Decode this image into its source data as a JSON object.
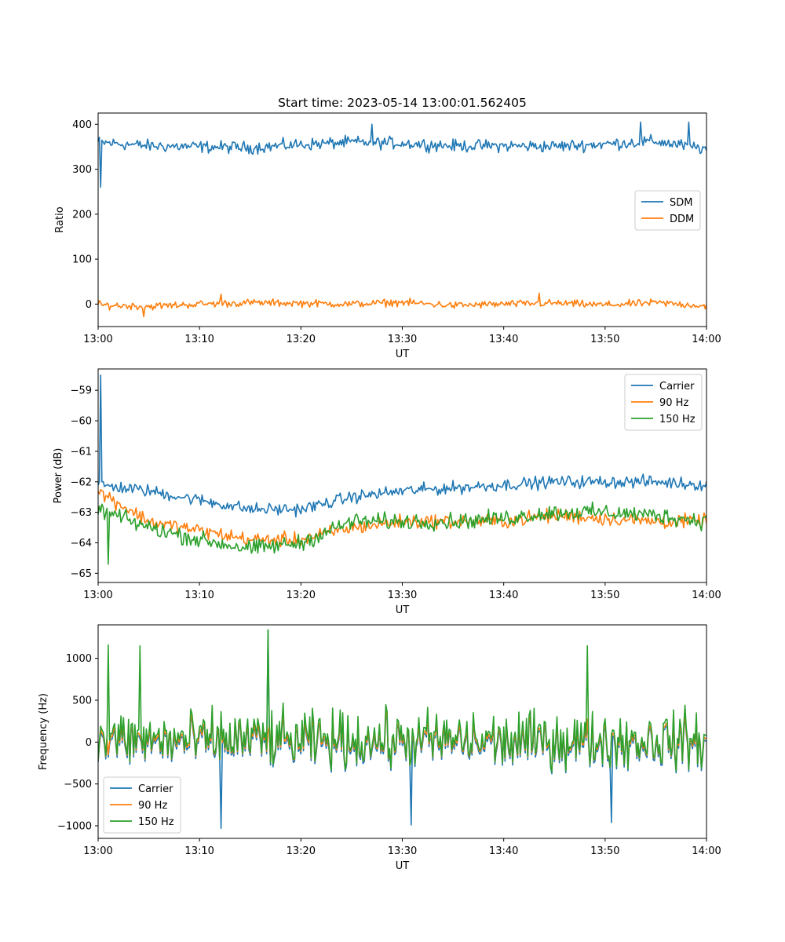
{
  "chart_data": [
    {
      "type": "line",
      "title": "Start time: 2023-05-14 13:00:01.562405",
      "xlabel": "UT",
      "ylabel": "Ratio",
      "xlim": [
        "13:00",
        "14:00"
      ],
      "xticks": [
        "13:00",
        "13:10",
        "13:20",
        "13:30",
        "13:40",
        "13:50",
        "14:00"
      ],
      "ylim": [
        -50,
        425
      ],
      "yticks": [
        0,
        100,
        200,
        300,
        400
      ],
      "grid": false,
      "legend_position": "center-right",
      "x_times": [
        "13:00:00",
        "13:05:00",
        "13:10:00",
        "13:15:00",
        "13:20:00",
        "13:25:00",
        "13:30:00",
        "13:35:00",
        "13:40:00",
        "13:45:00",
        "13:50:00",
        "13:55:00",
        "14:00:00"
      ],
      "series": [
        {
          "name": "SDM",
          "color": "#1f77b4",
          "mean": 355,
          "amplitude": 20,
          "spikes": [
            [
              "13:00:14",
              260
            ],
            [
              "13:27:00",
              400
            ],
            [
              "13:53:30",
              405
            ],
            [
              "13:58:15",
              405
            ]
          ],
          "values": [
            360,
            352,
            350,
            348,
            355,
            360,
            358,
            352,
            352,
            351,
            356,
            362,
            345
          ]
        },
        {
          "name": "DDM",
          "color": "#ff7f0e",
          "mean": 0,
          "amplitude": 12,
          "spikes": [
            [
              "13:04:30",
              -28
            ],
            [
              "13:12:10",
              22
            ],
            [
              "13:43:30",
              24
            ]
          ],
          "values": [
            -2,
            -5,
            0,
            3,
            2,
            0,
            4,
            -3,
            0,
            2,
            -2,
            3,
            -4
          ]
        }
      ]
    },
    {
      "type": "line",
      "title": "",
      "xlabel": "UT",
      "ylabel": "Power (dB)",
      "xlim": [
        "13:00",
        "14:00"
      ],
      "xticks": [
        "13:00",
        "13:10",
        "13:20",
        "13:30",
        "13:40",
        "13:50",
        "14:00"
      ],
      "ylim": [
        -65.3,
        -58.3
      ],
      "yticks": [
        -59,
        -60,
        -61,
        -62,
        -63,
        -64,
        -65
      ],
      "grid": false,
      "legend_position": "top-right",
      "x_times": [
        "13:00:00",
        "13:05:00",
        "13:10:00",
        "13:15:00",
        "13:20:00",
        "13:25:00",
        "13:30:00",
        "13:35:00",
        "13:40:00",
        "13:45:00",
        "13:50:00",
        "13:55:00",
        "14:00:00"
      ],
      "series": [
        {
          "name": "Carrier",
          "color": "#1f77b4",
          "amplitude": 0.3,
          "spikes": [
            [
              "13:00:15",
              -58.5
            ]
          ],
          "values": [
            -62.1,
            -62.3,
            -62.6,
            -62.9,
            -62.9,
            -62.5,
            -62.3,
            -62.2,
            -62.1,
            -62.0,
            -62.0,
            -62.0,
            -62.1
          ]
        },
        {
          "name": "90 Hz",
          "color": "#ff7f0e",
          "amplitude": 0.35,
          "spikes": [],
          "values": [
            -62.3,
            -63.3,
            -63.6,
            -63.9,
            -63.9,
            -63.5,
            -63.3,
            -63.3,
            -63.3,
            -63.1,
            -63.2,
            -63.3,
            -63.3
          ]
        },
        {
          "name": "150 Hz",
          "color": "#2ca02c",
          "amplitude": 0.4,
          "spikes": [
            [
              "13:01:00",
              -64.7
            ]
          ],
          "values": [
            -62.9,
            -63.5,
            -63.9,
            -64.2,
            -64.0,
            -63.3,
            -63.3,
            -63.3,
            -63.2,
            -63.0,
            -63.0,
            -63.1,
            -63.3
          ]
        }
      ]
    },
    {
      "type": "line",
      "title": "",
      "xlabel": "UT",
      "ylabel": "Frequency (Hz)",
      "xlim": [
        "13:00",
        "14:00"
      ],
      "xticks": [
        "13:00",
        "13:10",
        "13:20",
        "13:30",
        "13:40",
        "13:50",
        "14:00"
      ],
      "ylim": [
        -1150,
        1400
      ],
      "yticks": [
        1000,
        500,
        0,
        -500,
        -1000
      ],
      "grid": false,
      "legend_position": "lower-left",
      "x_times": [
        "13:00:00",
        "13:05:00",
        "13:10:00",
        "13:15:00",
        "13:20:00",
        "13:25:00",
        "13:30:00",
        "13:35:00",
        "13:40:00",
        "13:45:00",
        "13:50:00",
        "13:55:00",
        "14:00:00"
      ],
      "series": [
        {
          "name": "Carrier",
          "color": "#1f77b4",
          "offset": -60,
          "amplitude": 450,
          "spikes": [
            [
              "13:12:10",
              -1030
            ],
            [
              "13:16:45",
              1340
            ],
            [
              "13:30:50",
              -990
            ],
            [
              "13:50:40",
              -960
            ]
          ],
          "values": [
            50,
            40,
            30,
            60,
            20,
            40,
            30,
            40,
            20,
            40,
            30,
            40,
            20
          ]
        },
        {
          "name": "90 Hz",
          "color": "#ff7f0e",
          "offset": -30,
          "amplitude": 450,
          "spikes": [],
          "values": [
            50,
            40,
            30,
            60,
            20,
            40,
            30,
            40,
            20,
            40,
            30,
            40,
            20
          ]
        },
        {
          "name": "150 Hz",
          "color": "#2ca02c",
          "offset": 0,
          "amplitude": 500,
          "spikes": [
            [
              "13:01:00",
              1160
            ],
            [
              "13:04:10",
              1150
            ],
            [
              "13:16:45",
              1340
            ],
            [
              "13:48:15",
              1150
            ]
          ],
          "values": [
            50,
            40,
            30,
            60,
            20,
            40,
            30,
            40,
            20,
            40,
            30,
            40,
            20
          ]
        }
      ]
    }
  ]
}
